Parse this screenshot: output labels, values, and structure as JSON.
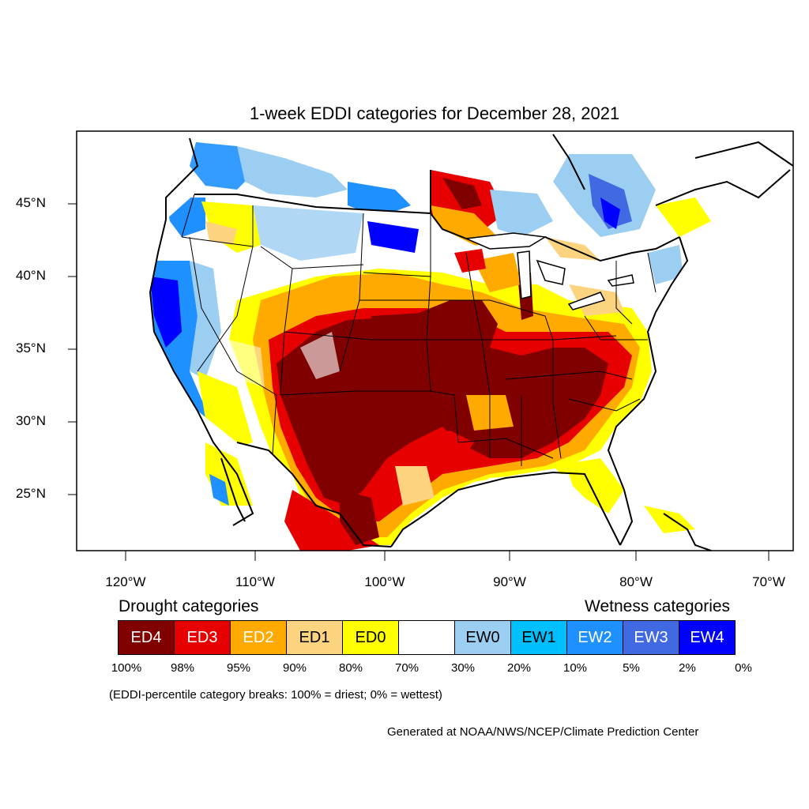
{
  "title": "1-week EDDI categories for December 28, 2021",
  "map": {
    "lat_labels": [
      "45°N",
      "40°N",
      "35°N",
      "30°N",
      "25°N"
    ],
    "lon_labels": [
      "120°W",
      "110°W",
      "100°W",
      "90°W",
      "80°W",
      "70°W"
    ]
  },
  "legend": {
    "drought_heading": "Drought categories",
    "wetness_heading": "Wetness categories",
    "categories": [
      {
        "label": "ED4",
        "color": "#800000",
        "text_color": "#ffffff"
      },
      {
        "label": "ED3",
        "color": "#e60000",
        "text_color": "#ffffff"
      },
      {
        "label": "ED2",
        "color": "#ffaa00",
        "text_color": "#ffffff"
      },
      {
        "label": "ED1",
        "color": "#fcd37f",
        "text_color": "#000000"
      },
      {
        "label": "ED0",
        "color": "#ffff00",
        "text_color": "#000000"
      },
      {
        "label": "",
        "color": "#ffffff",
        "text_color": "#000000"
      },
      {
        "label": "EW0",
        "color": "#9ccef2",
        "text_color": "#000000"
      },
      {
        "label": "EW1",
        "color": "#00bfff",
        "text_color": "#000000"
      },
      {
        "label": "EW2",
        "color": "#1e90ff",
        "text_color": "#ffffff"
      },
      {
        "label": "EW3",
        "color": "#4169e1",
        "text_color": "#ffffff"
      },
      {
        "label": "EW4",
        "color": "#0000ff",
        "text_color": "#ffffff"
      }
    ],
    "breaks": [
      "100%",
      "98%",
      "95%",
      "90%",
      "80%",
      "70%",
      "30%",
      "20%",
      "10%",
      "5%",
      "2%",
      "0%"
    ]
  },
  "note": "(EDDI-percentile category breaks: 100% = driest; 0% = wettest)",
  "credit": "Generated at NOAA/NWS/NCEP/Climate Prediction Center"
}
